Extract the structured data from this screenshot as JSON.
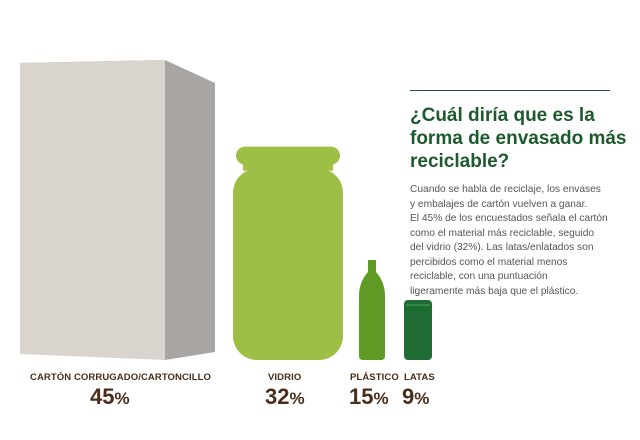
{
  "colors": {
    "cardboard_front": "#d9d4ce",
    "cardboard_side": "#a9a5a2",
    "glass": "#9dbf45",
    "plastic": "#5f9a24",
    "can": "#1f6b34",
    "title": "#1e5a2e",
    "label": "#4a2d1a",
    "body": "#555555"
  },
  "text_panel": {
    "title": "¿Cuál diría que es la forma de envasado más reciclable?",
    "lines": [
      "Cuando se habla de reciclaje, los envases",
      "y embalajes de cartón vuelven a ganar.",
      "El 45% de los encuestados señala el cartón",
      "como el material más reciclable, seguido",
      "del vidrio (32%). Las latas/enlatados son",
      "percibidos como el material menos",
      "reciclable, con una puntuación",
      "ligeramente más baja que el plástico."
    ]
  },
  "chart_data": {
    "type": "bar",
    "categories": [
      "CARTÓN CORRUGADO/CARTONCILLO",
      "VIDRIO",
      "PLÁSTICO",
      "LATAS"
    ],
    "values": [
      45,
      32,
      15,
      9
    ],
    "value_labels": [
      "45",
      "32",
      "15",
      "9"
    ],
    "unit": "%",
    "icons": [
      "cardboard-box-icon",
      "glass-jar-icon",
      "plastic-bottle-icon",
      "can-icon"
    ]
  }
}
